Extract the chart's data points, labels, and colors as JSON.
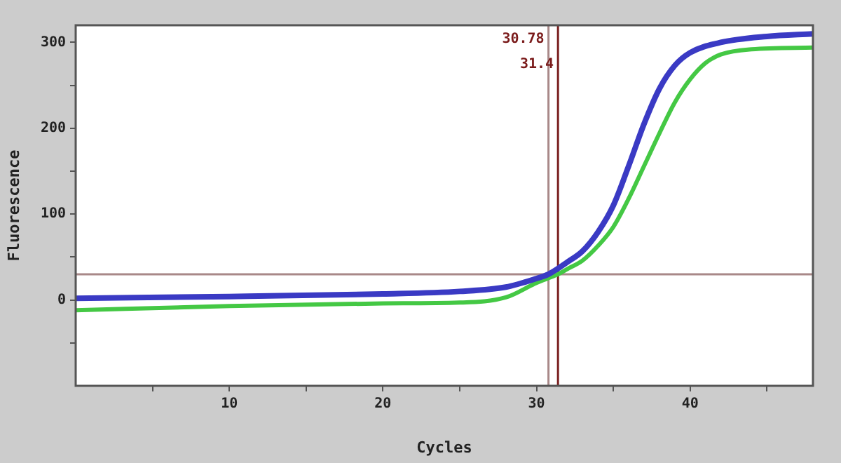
{
  "chart_data": {
    "type": "line",
    "xlabel": "Cycles",
    "ylabel": "Fluorescence",
    "xlim": [
      0,
      48
    ],
    "xticks": [
      {
        "value": 5,
        "label": null
      },
      10,
      {
        "value": 15,
        "label": null
      },
      20,
      {
        "value": 25,
        "label": null
      },
      30,
      {
        "value": 35,
        "label": null
      },
      40,
      {
        "value": 45,
        "label": null
      }
    ],
    "ylim": [
      -100,
      320
    ],
    "yticks": [
      {
        "value": -50,
        "label": null
      },
      0,
      {
        "value": 50,
        "label": null
      },
      100,
      {
        "value": 150,
        "label": null
      },
      200,
      {
        "value": 250,
        "label": null
      },
      300
    ],
    "grid": false,
    "legend": false,
    "marker": "none",
    "line_style": "solid",
    "series": [
      {
        "color": "#3a3ac4",
        "x": [
          0,
          10,
          20,
          25,
          28,
          30,
          30.78,
          32,
          33,
          34,
          35,
          36,
          37,
          38,
          39,
          40,
          42,
          45,
          48
        ],
        "values": [
          2,
          4,
          7,
          10,
          15,
          25,
          30,
          44,
          57,
          79,
          110,
          156,
          205,
          246,
          273,
          288,
          300,
          307,
          310
        ]
      },
      {
        "color": "#44c844",
        "x": [
          0,
          10,
          20,
          25,
          28,
          30,
          31.4,
          32,
          33,
          34,
          35,
          36,
          37,
          38,
          39,
          40,
          41,
          42,
          44,
          48
        ],
        "values": [
          -12,
          -7,
          -4,
          -3,
          3,
          20,
          30,
          36,
          46,
          63,
          85,
          118,
          156,
          194,
          230,
          257,
          276,
          286,
          292,
          294
        ]
      }
    ],
    "ref_lines": [
      {
        "axis": "y",
        "value": 30,
        "label": null,
        "color": "#a88888"
      },
      {
        "axis": "x",
        "value": 30.78,
        "label": "30.78",
        "color": "#a88888"
      },
      {
        "axis": "x",
        "value": 31.4,
        "label": "31.4",
        "color": "#7a2020"
      }
    ]
  }
}
